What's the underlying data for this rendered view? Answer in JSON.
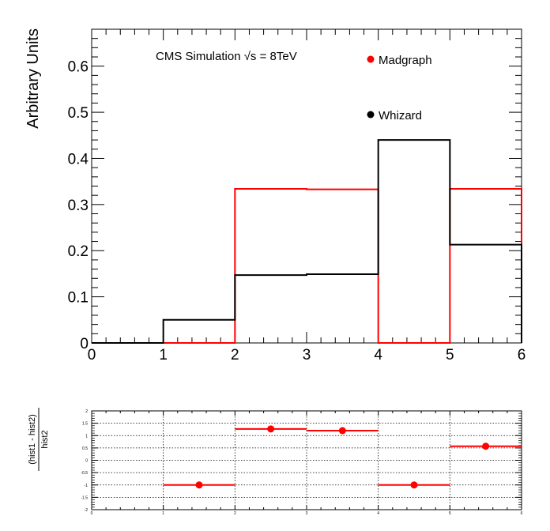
{
  "chart_data": [
    {
      "type": "histogram",
      "text": "CMS Simulation √s = 8TeV",
      "ylabel": "Arbitrary Units",
      "xlim": [
        0,
        6
      ],
      "ylim": [
        0,
        0.68
      ],
      "xticks": [
        "0",
        "1",
        "2",
        "3",
        "4",
        "5",
        "6"
      ],
      "yticks": [
        "0",
        "0.1",
        "0.2",
        "0.3",
        "0.4",
        "0.5",
        "0.6"
      ],
      "bin_edges": [
        0,
        1,
        2,
        3,
        4,
        5,
        6
      ],
      "legend_position": "top-right",
      "series": [
        {
          "name": "Madgraph",
          "color": "#ff0000",
          "values": [
            0,
            0,
            0.334,
            0.333,
            0,
            0.334
          ]
        },
        {
          "name": "Whizard",
          "color": "#000000",
          "values": [
            0,
            0.05,
            0.147,
            0.149,
            0.44,
            0.213
          ]
        }
      ]
    },
    {
      "type": "scatter",
      "ylabel_numerator": "(hist1 - hist2)",
      "ylabel_denominator": "hist2",
      "xlim": [
        0,
        6
      ],
      "ylim": [
        -2,
        2
      ],
      "grid": true,
      "xticks": [
        "0",
        "1",
        "2",
        "3",
        "4",
        "5",
        "6"
      ],
      "yticks": [
        "-2",
        "-1.5",
        "-1",
        "-0.5",
        "0",
        "0.5",
        "1",
        "1.5",
        "2"
      ],
      "series": [
        {
          "color": "#ff0000",
          "x": [
            1.5,
            2.5,
            3.5,
            4.5,
            5.5
          ],
          "y": [
            -1,
            1.27,
            1.2,
            -1,
            0.57
          ]
        }
      ]
    }
  ]
}
